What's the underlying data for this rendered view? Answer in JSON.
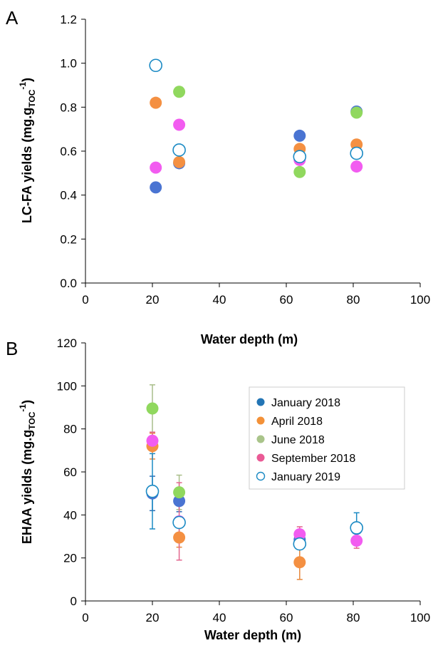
{
  "colors": {
    "january_2018": "#4a74d2",
    "april_2018": "#f49042",
    "june_2018": "#90d85e",
    "september_2018": "#f25cf0",
    "january_2019": "#1b8ac4",
    "error_jan2018": "#2f6db5",
    "error_apr2018": "#e8883c",
    "error_jun2018": "#a9be8a",
    "error_sep2018": "#e3668e",
    "legend_jan2018": "#2375b5",
    "legend_apr2018": "#f39138",
    "legend_jun2018": "#a9c48a",
    "legend_sep2018": "#ea5a95"
  },
  "chart_data": [
    {
      "type": "scatter",
      "panel": "A",
      "xlabel": "Water depth (m)",
      "ylabel_main": "LC-FA yields (mg.g",
      "ylabel_sub": "TOC",
      "ylabel_sup": "-1",
      "ylabel_close": ")",
      "xlim": [
        0,
        100
      ],
      "ylim": [
        0,
        1.2
      ],
      "x_ticks": [
        "0",
        "20",
        "40",
        "60",
        "80",
        "100"
      ],
      "y_ticks": [
        "0.0",
        "0.2",
        "0.4",
        "0.6",
        "0.8",
        "1.0",
        "1.2"
      ],
      "grid": false,
      "series": [
        {
          "key": "jan2018",
          "points": [
            [
              21,
              0.435
            ],
            [
              28,
              0.545
            ],
            [
              64,
              0.67
            ],
            [
              81,
              0.78
            ]
          ]
        },
        {
          "key": "apr2018",
          "points": [
            [
              21,
              0.82
            ],
            [
              28,
              0.55
            ],
            [
              64,
              0.61
            ],
            [
              81,
              0.63
            ]
          ]
        },
        {
          "key": "jun2018",
          "points": [
            [
              28,
              0.87
            ],
            [
              64,
              0.505
            ],
            [
              81,
              0.775
            ]
          ]
        },
        {
          "key": "sep2018",
          "points": [
            [
              21,
              0.525
            ],
            [
              28,
              0.72
            ],
            [
              64,
              0.56
            ],
            [
              81,
              0.53
            ]
          ]
        },
        {
          "key": "jan2019",
          "points": [
            [
              21,
              0.99
            ],
            [
              28,
              0.605
            ],
            [
              64,
              0.575
            ],
            [
              81,
              0.59
            ]
          ]
        }
      ]
    },
    {
      "type": "scatter",
      "panel": "B",
      "xlabel": "Water depth (m)",
      "ylabel_main": "EHAA yields (mg.g",
      "ylabel_sub": "TOC",
      "ylabel_sup": "-1",
      "ylabel_close": ")",
      "xlim": [
        0,
        100
      ],
      "ylim": [
        0,
        120
      ],
      "x_ticks": [
        "0",
        "20",
        "40",
        "60",
        "80",
        "100"
      ],
      "y_ticks": [
        "0",
        "20",
        "40",
        "60",
        "80",
        "100",
        "120"
      ],
      "grid": false,
      "legend_position": "upper-right",
      "series": [
        {
          "key": "jan2018",
          "name": "January 2018",
          "points": [
            [
              20,
              50,
              8
            ],
            [
              28,
              46.5,
              5
            ],
            [
              64,
              28.5,
              2
            ],
            [
              81,
              33.5,
              2
            ]
          ]
        },
        {
          "key": "apr2018",
          "name": "April 2018",
          "points": [
            [
              20,
              72,
              6
            ],
            [
              28,
              29.5,
              4.5
            ],
            [
              64,
              18,
              8
            ]
          ]
        },
        {
          "key": "jun2018",
          "name": "June 2018",
          "points": [
            [
              20,
              89.5,
              11
            ],
            [
              28,
              50.5,
              8
            ]
          ]
        },
        {
          "key": "sep2018",
          "name": "September 2018",
          "points": [
            [
              20,
              74.5,
              4
            ],
            [
              28,
              37,
              18
            ],
            [
              64,
              31,
              3.5
            ],
            [
              81,
              28,
              3.5
            ]
          ]
        },
        {
          "key": "jan2019",
          "name": "January 2019",
          "points": [
            [
              20,
              51,
              17.5
            ],
            [
              28,
              36.5,
              2
            ],
            [
              64,
              26.5,
              2
            ],
            [
              81,
              34,
              7
            ]
          ]
        }
      ]
    }
  ]
}
